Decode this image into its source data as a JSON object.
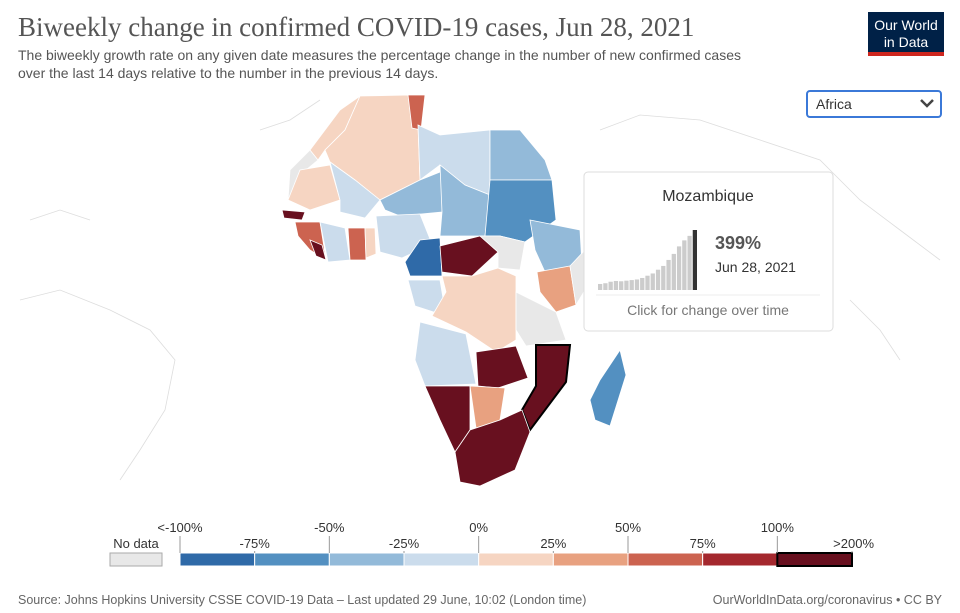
{
  "header": {
    "title": "Biweekly change in confirmed COVID-19 cases, Jun 28, 2021",
    "subtitle_lines": [
      "The biweekly growth rate on any given date measures the percentage change in the number of new confirmed cases",
      "over the last 14 days relative to the number in the previous 14 days."
    ]
  },
  "logo": {
    "lines": [
      "Our World",
      "in Data"
    ]
  },
  "region_select": {
    "selected": "Africa"
  },
  "tooltip": {
    "country": "Mozambique",
    "value": "399%",
    "date": "Jun 28, 2021",
    "hint": "Click for change over time",
    "history": [
      40,
      45,
      55,
      60,
      58,
      62,
      66,
      70,
      80,
      95,
      110,
      135,
      160,
      200,
      240,
      290,
      330,
      360,
      399
    ]
  },
  "legend": {
    "no_data": "No data",
    "labels": [
      "<-100%",
      "-75%",
      "-50%",
      "-25%",
      "0%",
      "25%",
      "50%",
      "75%",
      "100%",
      ">200%"
    ],
    "colors": [
      "#2f6aa8",
      "#5390c1",
      "#93bad9",
      "#cbdcec",
      "#f6d5c2",
      "#e8a180",
      "#cc6350",
      "#a4282e",
      "#68101f"
    ]
  },
  "footer": {
    "source": "Source: Johns Hopkins University CSSE COVID-19 Data – Last updated 29 June, 10:02 (London time)",
    "credit": "OurWorldInData.org/coronavirus • CC BY"
  }
}
